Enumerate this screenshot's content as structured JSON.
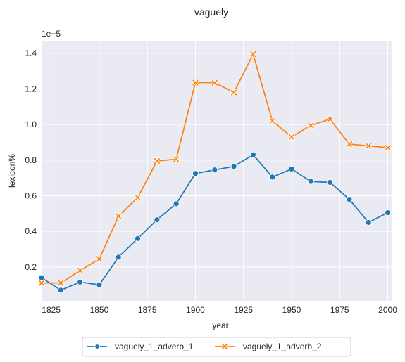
{
  "chart_data": {
    "type": "line",
    "title": "vaguely",
    "xlabel": "year",
    "ylabel": "lexicon%",
    "y_offset_label": "1e−5",
    "xlim": [
      1820,
      2002
    ],
    "ylim": [
      0.01,
      1.47
    ],
    "x_ticks": [
      1825,
      1850,
      1875,
      1900,
      1925,
      1950,
      1975,
      2000
    ],
    "y_ticks": [
      0.2,
      0.4,
      0.6,
      0.8,
      1.0,
      1.2,
      1.4
    ],
    "y_tick_labels": [
      "0.2",
      "0.4",
      "0.6",
      "0.8",
      "1.0",
      "1.2",
      "1.4"
    ],
    "grid": true,
    "legend_position": "bottom-center",
    "background": "#eaeaf2",
    "x": [
      1820,
      1830,
      1840,
      1850,
      1860,
      1870,
      1880,
      1890,
      1900,
      1910,
      1920,
      1930,
      1940,
      1950,
      1960,
      1970,
      1980,
      1990,
      2000
    ],
    "series": [
      {
        "name": "vaguely_1_adverb_1",
        "color": "#1f77b4",
        "marker": "circle",
        "values": [
          0.14,
          0.07,
          0.115,
          0.1,
          0.255,
          0.36,
          0.465,
          0.555,
          0.725,
          0.745,
          0.765,
          0.83,
          0.705,
          0.75,
          0.68,
          0.675,
          0.58,
          0.45,
          0.505
        ]
      },
      {
        "name": "vaguely_1_adverb_2",
        "color": "#ff7f0e",
        "marker": "x",
        "values": [
          0.11,
          0.11,
          0.18,
          0.245,
          0.485,
          0.59,
          0.795,
          0.805,
          1.235,
          1.235,
          1.18,
          1.395,
          1.02,
          0.93,
          0.995,
          1.03,
          0.89,
          0.88,
          0.87
        ]
      }
    ]
  }
}
